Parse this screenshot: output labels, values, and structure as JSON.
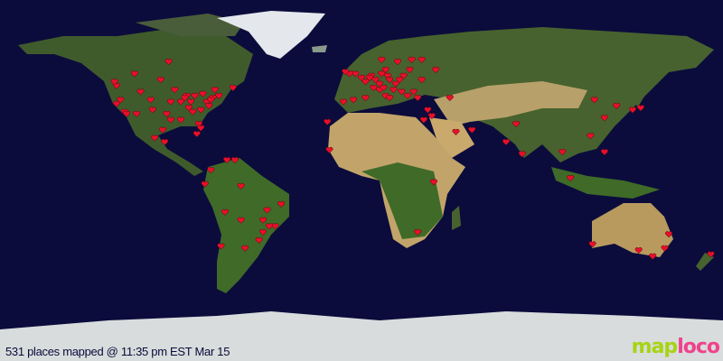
{
  "caption": "531 places mapped @ 11:35 pm EST Mar 15",
  "logo": {
    "part1": "map",
    "part2": "loco"
  },
  "colors": {
    "ocean": "#0b0c3c",
    "land": "#3f5b2c",
    "desert": "#c2a46a",
    "ice": "#e4e8ec",
    "marker": "#e8102a"
  },
  "marker_icon": "heart-icon",
  "markers_lonlat": [
    [
      -122,
      47
    ],
    [
      -122,
      38
    ],
    [
      -118,
      34
    ],
    [
      -117,
      33
    ],
    [
      -112,
      33
    ],
    [
      -105,
      40
    ],
    [
      -97,
      33
    ],
    [
      -95,
      30
    ],
    [
      -90,
      30
    ],
    [
      -87,
      42
    ],
    [
      -84,
      34
    ],
    [
      -81,
      28
    ],
    [
      -80,
      26
    ],
    [
      -77,
      39
    ],
    [
      -74,
      41
    ],
    [
      -71,
      42
    ],
    [
      -79,
      43
    ],
    [
      -83,
      42
    ],
    [
      -93,
      45
    ],
    [
      -90,
      39
    ],
    [
      -86,
      36
    ],
    [
      -80,
      35
    ],
    [
      -76,
      37
    ],
    [
      -75,
      40
    ],
    [
      -73,
      45
    ],
    [
      -64,
      46
    ],
    [
      -113,
      53
    ],
    [
      -123,
      49
    ],
    [
      -100,
      50
    ],
    [
      -96,
      59
    ],
    [
      -98,
      19
    ],
    [
      -103,
      21
    ],
    [
      -99,
      25
    ],
    [
      -82,
      23
    ],
    [
      -88,
      41
    ],
    [
      -85,
      39
    ],
    [
      -95,
      39
    ],
    [
      -104,
      35
    ],
    [
      -110,
      44
    ],
    [
      -120,
      40
    ],
    [
      -67,
      10
    ],
    [
      -63,
      10
    ],
    [
      -75,
      5
    ],
    [
      -78,
      -2
    ],
    [
      -60,
      -3
    ],
    [
      -47,
      -15
    ],
    [
      -43,
      -23
    ],
    [
      -46,
      -23
    ],
    [
      -51,
      -30
    ],
    [
      -58,
      -34
    ],
    [
      -70,
      -33
    ],
    [
      -60,
      -20
    ],
    [
      -68,
      -16
    ],
    [
      -49,
      -20
    ],
    [
      -40,
      -12
    ],
    [
      -49,
      -26
    ],
    [
      -9,
      39
    ],
    [
      -4,
      40
    ],
    [
      2,
      41
    ],
    [
      -3,
      53
    ],
    [
      0,
      51
    ],
    [
      2,
      49
    ],
    [
      5,
      52
    ],
    [
      4,
      51
    ],
    [
      7,
      50
    ],
    [
      9,
      48
    ],
    [
      13,
      52
    ],
    [
      10,
      53
    ],
    [
      12,
      55
    ],
    [
      18,
      59
    ],
    [
      10,
      60
    ],
    [
      25,
      60
    ],
    [
      24,
      55
    ],
    [
      21,
      52
    ],
    [
      19,
      50
    ],
    [
      17,
      48
    ],
    [
      14,
      50
    ],
    [
      16,
      45
    ],
    [
      12,
      42
    ],
    [
      9,
      45
    ],
    [
      14,
      41
    ],
    [
      20,
      44
    ],
    [
      23,
      42
    ],
    [
      28,
      41
    ],
    [
      30,
      50
    ],
    [
      37,
      55
    ],
    [
      30,
      60
    ],
    [
      26,
      44
    ],
    [
      33,
      35
    ],
    [
      35,
      32
    ],
    [
      44,
      41
    ],
    [
      -6,
      53
    ],
    [
      -8,
      54
    ],
    [
      6,
      46
    ],
    [
      11,
      46
    ],
    [
      -17,
      29
    ],
    [
      31,
      30
    ],
    [
      -16,
      15
    ],
    [
      36,
      -1
    ],
    [
      28,
      -26
    ],
    [
      47,
      24
    ],
    [
      55,
      25
    ],
    [
      77,
      28
    ],
    [
      72,
      19
    ],
    [
      80,
      13
    ],
    [
      100,
      14
    ],
    [
      104,
      1
    ],
    [
      114,
      22
    ],
    [
      121,
      31
    ],
    [
      116,
      40
    ],
    [
      127,
      37
    ],
    [
      139,
      36
    ],
    [
      121,
      14
    ],
    [
      135,
      35
    ],
    [
      151,
      -34
    ],
    [
      145,
      -38
    ],
    [
      153,
      -27
    ],
    [
      115,
      -32
    ],
    [
      138,
      -35
    ],
    [
      174,
      -37
    ]
  ]
}
